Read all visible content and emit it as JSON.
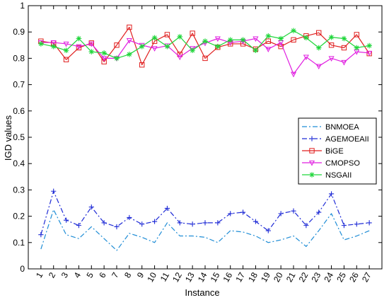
{
  "chart_data": {
    "type": "line",
    "title": "",
    "xlabel": "Instance",
    "ylabel": "IGD values",
    "x": [
      1,
      2,
      3,
      4,
      5,
      6,
      7,
      8,
      9,
      10,
      11,
      12,
      13,
      14,
      15,
      16,
      17,
      18,
      19,
      20,
      21,
      22,
      23,
      24,
      25,
      26,
      27
    ],
    "xticks": [
      "1",
      "2",
      "3",
      "4",
      "5",
      "6",
      "7",
      "8",
      "9",
      "10",
      "11",
      "12",
      "13",
      "14",
      "15",
      "16",
      "17",
      "18",
      "19",
      "20",
      "21",
      "22",
      "23",
      "24",
      "25",
      "26",
      "27"
    ],
    "xlim": [
      0,
      28
    ],
    "ylim": [
      0,
      1
    ],
    "yticks": [
      "0",
      "0.1",
      "0.2",
      "0.3",
      "0.4",
      "0.5",
      "0.6",
      "0.7",
      "0.8",
      "0.9",
      "1"
    ],
    "grid": false,
    "legend_placement": "right",
    "series": [
      {
        "name": "BNMOEA",
        "color": "#1f8dd6",
        "line_style": "dashdot",
        "marker": "none",
        "values": [
          0.075,
          0.225,
          0.13,
          0.115,
          0.16,
          0.115,
          0.07,
          0.135,
          0.12,
          0.1,
          0.175,
          0.125,
          0.125,
          0.12,
          0.1,
          0.145,
          0.14,
          0.125,
          0.1,
          0.11,
          0.125,
          0.085,
          0.145,
          0.21,
          0.11,
          0.125,
          0.145
        ]
      },
      {
        "name": "AGEMOEAII",
        "color": "#1f2bd6",
        "line_style": "dashdot",
        "marker": "plus",
        "values": [
          0.13,
          0.295,
          0.185,
          0.165,
          0.235,
          0.175,
          0.16,
          0.195,
          0.17,
          0.18,
          0.23,
          0.175,
          0.17,
          0.175,
          0.175,
          0.21,
          0.215,
          0.18,
          0.145,
          0.21,
          0.22,
          0.165,
          0.215,
          0.285,
          0.165,
          0.17,
          0.175
        ]
      },
      {
        "name": "BiGE",
        "color": "#e01f1f",
        "line_style": "solid",
        "marker": "square",
        "values": [
          0.865,
          0.858,
          0.795,
          0.84,
          0.858,
          0.787,
          0.85,
          0.918,
          0.775,
          0.865,
          0.89,
          0.815,
          0.895,
          0.8,
          0.842,
          0.855,
          0.855,
          0.835,
          0.865,
          0.845,
          0.87,
          0.885,
          0.897,
          0.85,
          0.84,
          0.89,
          0.818
        ]
      },
      {
        "name": "CMOPSO",
        "color": "#e01fe0",
        "line_style": "solid",
        "marker": "triangle-down",
        "values": [
          0.86,
          0.86,
          0.855,
          0.845,
          0.855,
          0.8,
          0.8,
          0.868,
          0.85,
          0.838,
          0.848,
          0.805,
          0.838,
          0.858,
          0.875,
          0.86,
          0.865,
          0.875,
          0.835,
          0.86,
          0.74,
          0.805,
          0.77,
          0.8,
          0.785,
          0.825,
          0.82
        ]
      },
      {
        "name": "NSGAII",
        "color": "#1fd63a",
        "line_style": "solid",
        "marker": "star",
        "values": [
          0.855,
          0.845,
          0.83,
          0.875,
          0.825,
          0.82,
          0.8,
          0.815,
          0.845,
          0.878,
          0.845,
          0.882,
          0.83,
          0.865,
          0.845,
          0.87,
          0.87,
          0.83,
          0.885,
          0.875,
          0.905,
          0.878,
          0.84,
          0.88,
          0.875,
          0.84,
          0.848
        ]
      }
    ]
  }
}
